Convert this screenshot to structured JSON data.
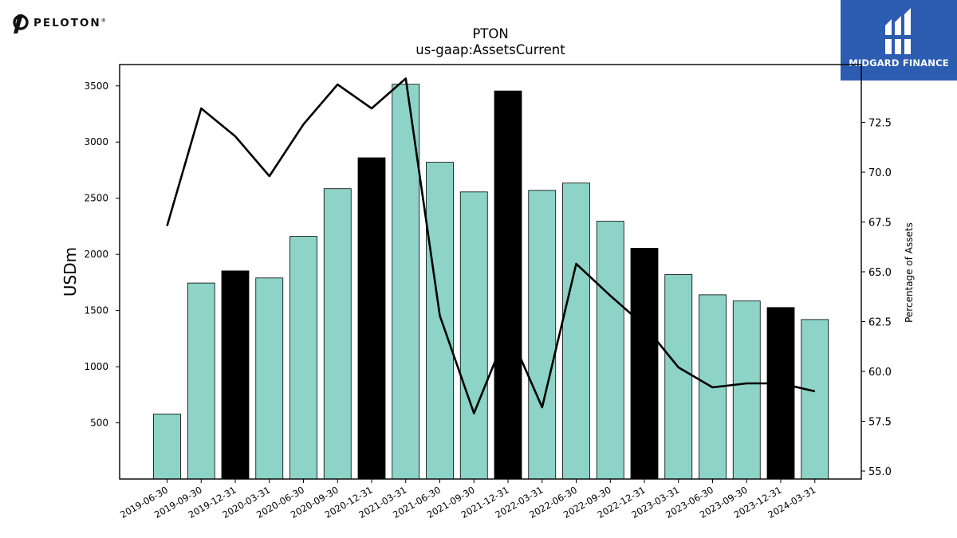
{
  "branding": {
    "left_logo_text": "PELOTON",
    "left_logo_reg": "®",
    "right_logo_text": "MIDGARD FINANCE",
    "right_logo_bg": "#2d5db0"
  },
  "chart_data": {
    "type": "bar",
    "title": "PTON",
    "subtitle": "us-gaap:AssetsCurrent",
    "ylabel": "USDm",
    "y2label": "Percentage of Assets",
    "ylim": [
      0,
      3690
    ],
    "y2lim": [
      54.6,
      75.4
    ],
    "yticks": [
      500,
      1000,
      1500,
      2000,
      2500,
      3000,
      3500
    ],
    "y2ticks": [
      55.0,
      57.5,
      60.0,
      62.5,
      65.0,
      67.5,
      70.0,
      72.5
    ],
    "categories": [
      "2019-06-30",
      "2019-09-30",
      "2019-12-31",
      "2020-03-31",
      "2020-06-30",
      "2020-09-30",
      "2020-12-31",
      "2021-03-31",
      "2021-06-30",
      "2021-09-30",
      "2021-12-31",
      "2022-03-31",
      "2022-06-30",
      "2022-09-30",
      "2022-12-31",
      "2023-03-31",
      "2023-06-30",
      "2023-09-30",
      "2023-12-31",
      "2024-03-31"
    ],
    "series": [
      {
        "type": "bar",
        "values": [
          578,
          1745,
          1853,
          1790,
          2160,
          2585,
          2860,
          3515,
          2820,
          2556,
          3455,
          2570,
          2635,
          2295,
          2055,
          1820,
          1640,
          1585,
          1527,
          1420
        ],
        "colors": [
          "#8dd3c7",
          "#8dd3c7",
          "#000000",
          "#8dd3c7",
          "#8dd3c7",
          "#8dd3c7",
          "#000000",
          "#8dd3c7",
          "#8dd3c7",
          "#8dd3c7",
          "#000000",
          "#8dd3c7",
          "#8dd3c7",
          "#8dd3c7",
          "#000000",
          "#8dd3c7",
          "#8dd3c7",
          "#8dd3c7",
          "#000000",
          "#8dd3c7"
        ]
      },
      {
        "type": "line",
        "axis": "right",
        "color": "#000000",
        "values": [
          67.3,
          73.2,
          71.8,
          69.8,
          72.4,
          74.4,
          73.2,
          74.7,
          62.8,
          57.9,
          62.1,
          58.2,
          65.4,
          63.8,
          62.3,
          60.2,
          59.2,
          59.4,
          59.4,
          59.0
        ]
      }
    ],
    "bar_color": "#8dd3c7",
    "highlight_color": "#000000"
  }
}
